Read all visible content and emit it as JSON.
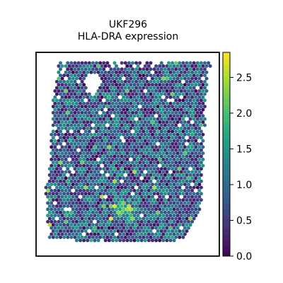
{
  "chart_data": {
    "type": "scatter",
    "plot_kind": "spatial hexagonal spot map",
    "title_lines": [
      "UKF296",
      "HLA-DRA expression"
    ],
    "axes_frame": true,
    "grid": false,
    "colormap": "viridis",
    "colorbar": {
      "position": "right",
      "range": [
        0.0,
        2.85
      ],
      "ticks": [
        0.0,
        0.5,
        1.0,
        1.5,
        2.0,
        2.5
      ],
      "tick_labels": [
        "0.0",
        "0.5",
        "1.0",
        "1.5",
        "2.0",
        "2.5"
      ]
    },
    "value_distribution": {
      "dominant_range": [
        0.5,
        1.5
      ],
      "max_value": 2.8,
      "high_expression_hotspot": "lower-center"
    }
  },
  "colors": {
    "viridis_stops": [
      "#440154",
      "#46327e",
      "#365c8d",
      "#277f8e",
      "#1fa187",
      "#4ac16d",
      "#a0da39",
      "#fde725"
    ]
  }
}
